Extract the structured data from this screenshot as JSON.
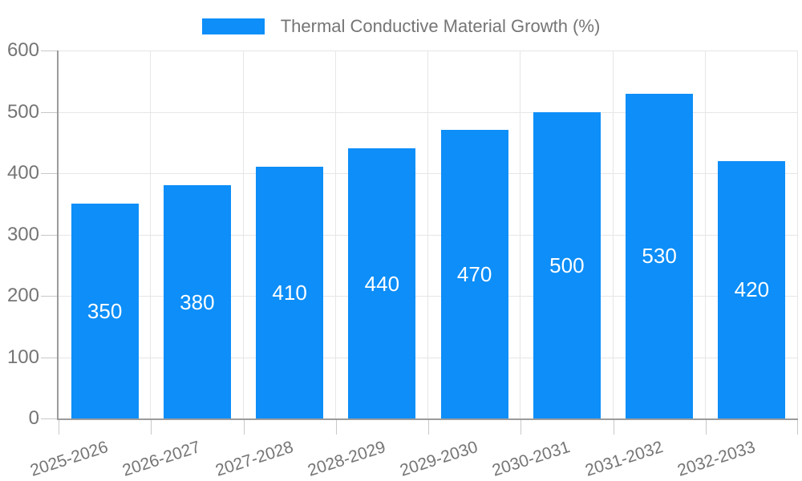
{
  "chart_data": {
    "type": "bar",
    "title": "Thermal Conductive Material Growth (%)",
    "categories": [
      "2025-2026",
      "2026-2027",
      "2027-2028",
      "2028-2029",
      "2029-2030",
      "2030-2031",
      "2031-2032",
      "2032-2033"
    ],
    "values": [
      350,
      380,
      410,
      440,
      470,
      500,
      530,
      420
    ],
    "value_labels": [
      "350",
      "380",
      "410",
      "440",
      "470",
      "500",
      "530",
      "420"
    ],
    "y_tick_labels": [
      "0",
      "100",
      "200",
      "300",
      "400",
      "500",
      "600"
    ],
    "ylim": [
      0,
      600
    ],
    "ytick_step": 100,
    "xlabel": "",
    "ylabel": "",
    "grid": "both",
    "legend_position": "top",
    "x_label_rotation_deg": -18,
    "colors": {
      "bar": "#0d8ef8",
      "value_label": "#ffffff",
      "axis": "#9b9b9b",
      "gridline": "#e6e6e6",
      "tick": "#c8c8c8",
      "text": "#757575"
    }
  }
}
